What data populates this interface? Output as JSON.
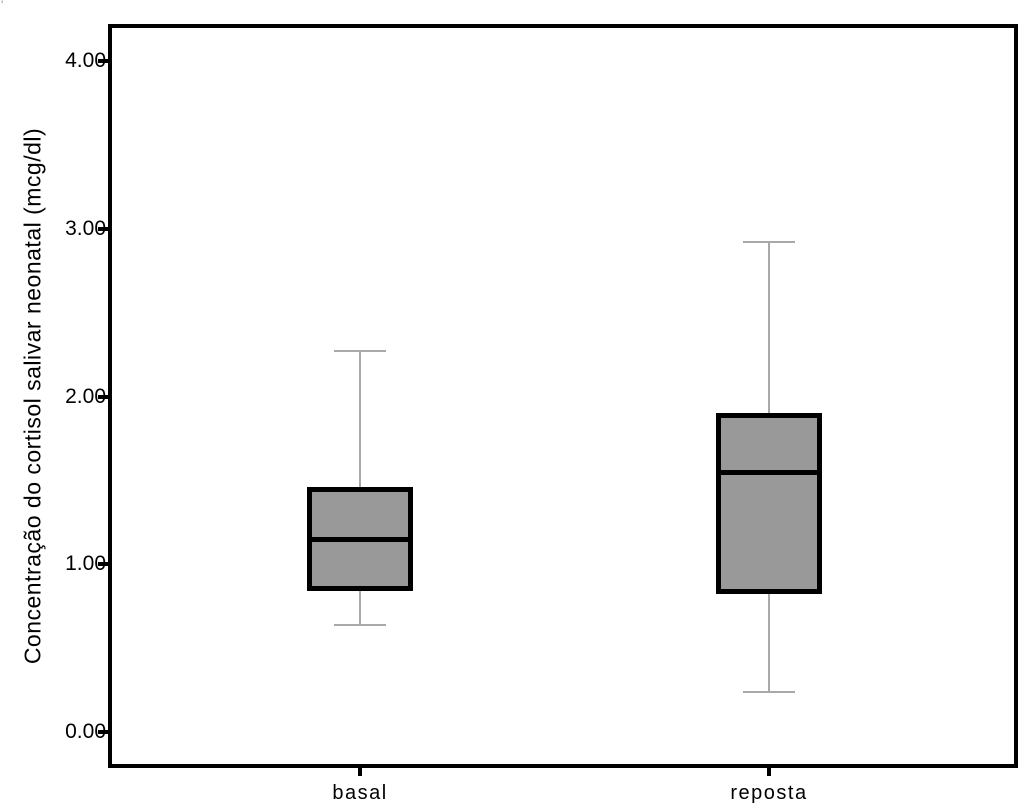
{
  "figure": {
    "stray_mark": "'"
  },
  "chart_data": {
    "type": "boxplot",
    "title": "",
    "xlabel": "",
    "ylabel": "Concentração do cortisol salivar neonatal (mcg/dl)",
    "categories": [
      "basal",
      "reposta"
    ],
    "ylim": [
      0,
      4
    ],
    "yticks": [
      0,
      1,
      2,
      3,
      4
    ],
    "ytick_labels": [
      "0.00",
      "1.00",
      "2.00",
      "3.00",
      "4.00"
    ],
    "grid": false,
    "legend": null,
    "series": [
      {
        "name": "basal",
        "whisker_low": 0.64,
        "q1": 0.84,
        "median": 1.15,
        "q3": 1.46,
        "whisker_high": 2.27,
        "outliers": []
      },
      {
        "name": "reposta",
        "whisker_low": 0.24,
        "q1": 0.82,
        "median": 1.55,
        "q3": 1.9,
        "whisker_high": 2.92,
        "outliers": []
      }
    ],
    "colors": {
      "box_fill": "#999999",
      "box_border": "#000000",
      "median": "#000000",
      "whisker": "#a9a9a9",
      "axis": "#000000",
      "text": "#000000"
    }
  }
}
